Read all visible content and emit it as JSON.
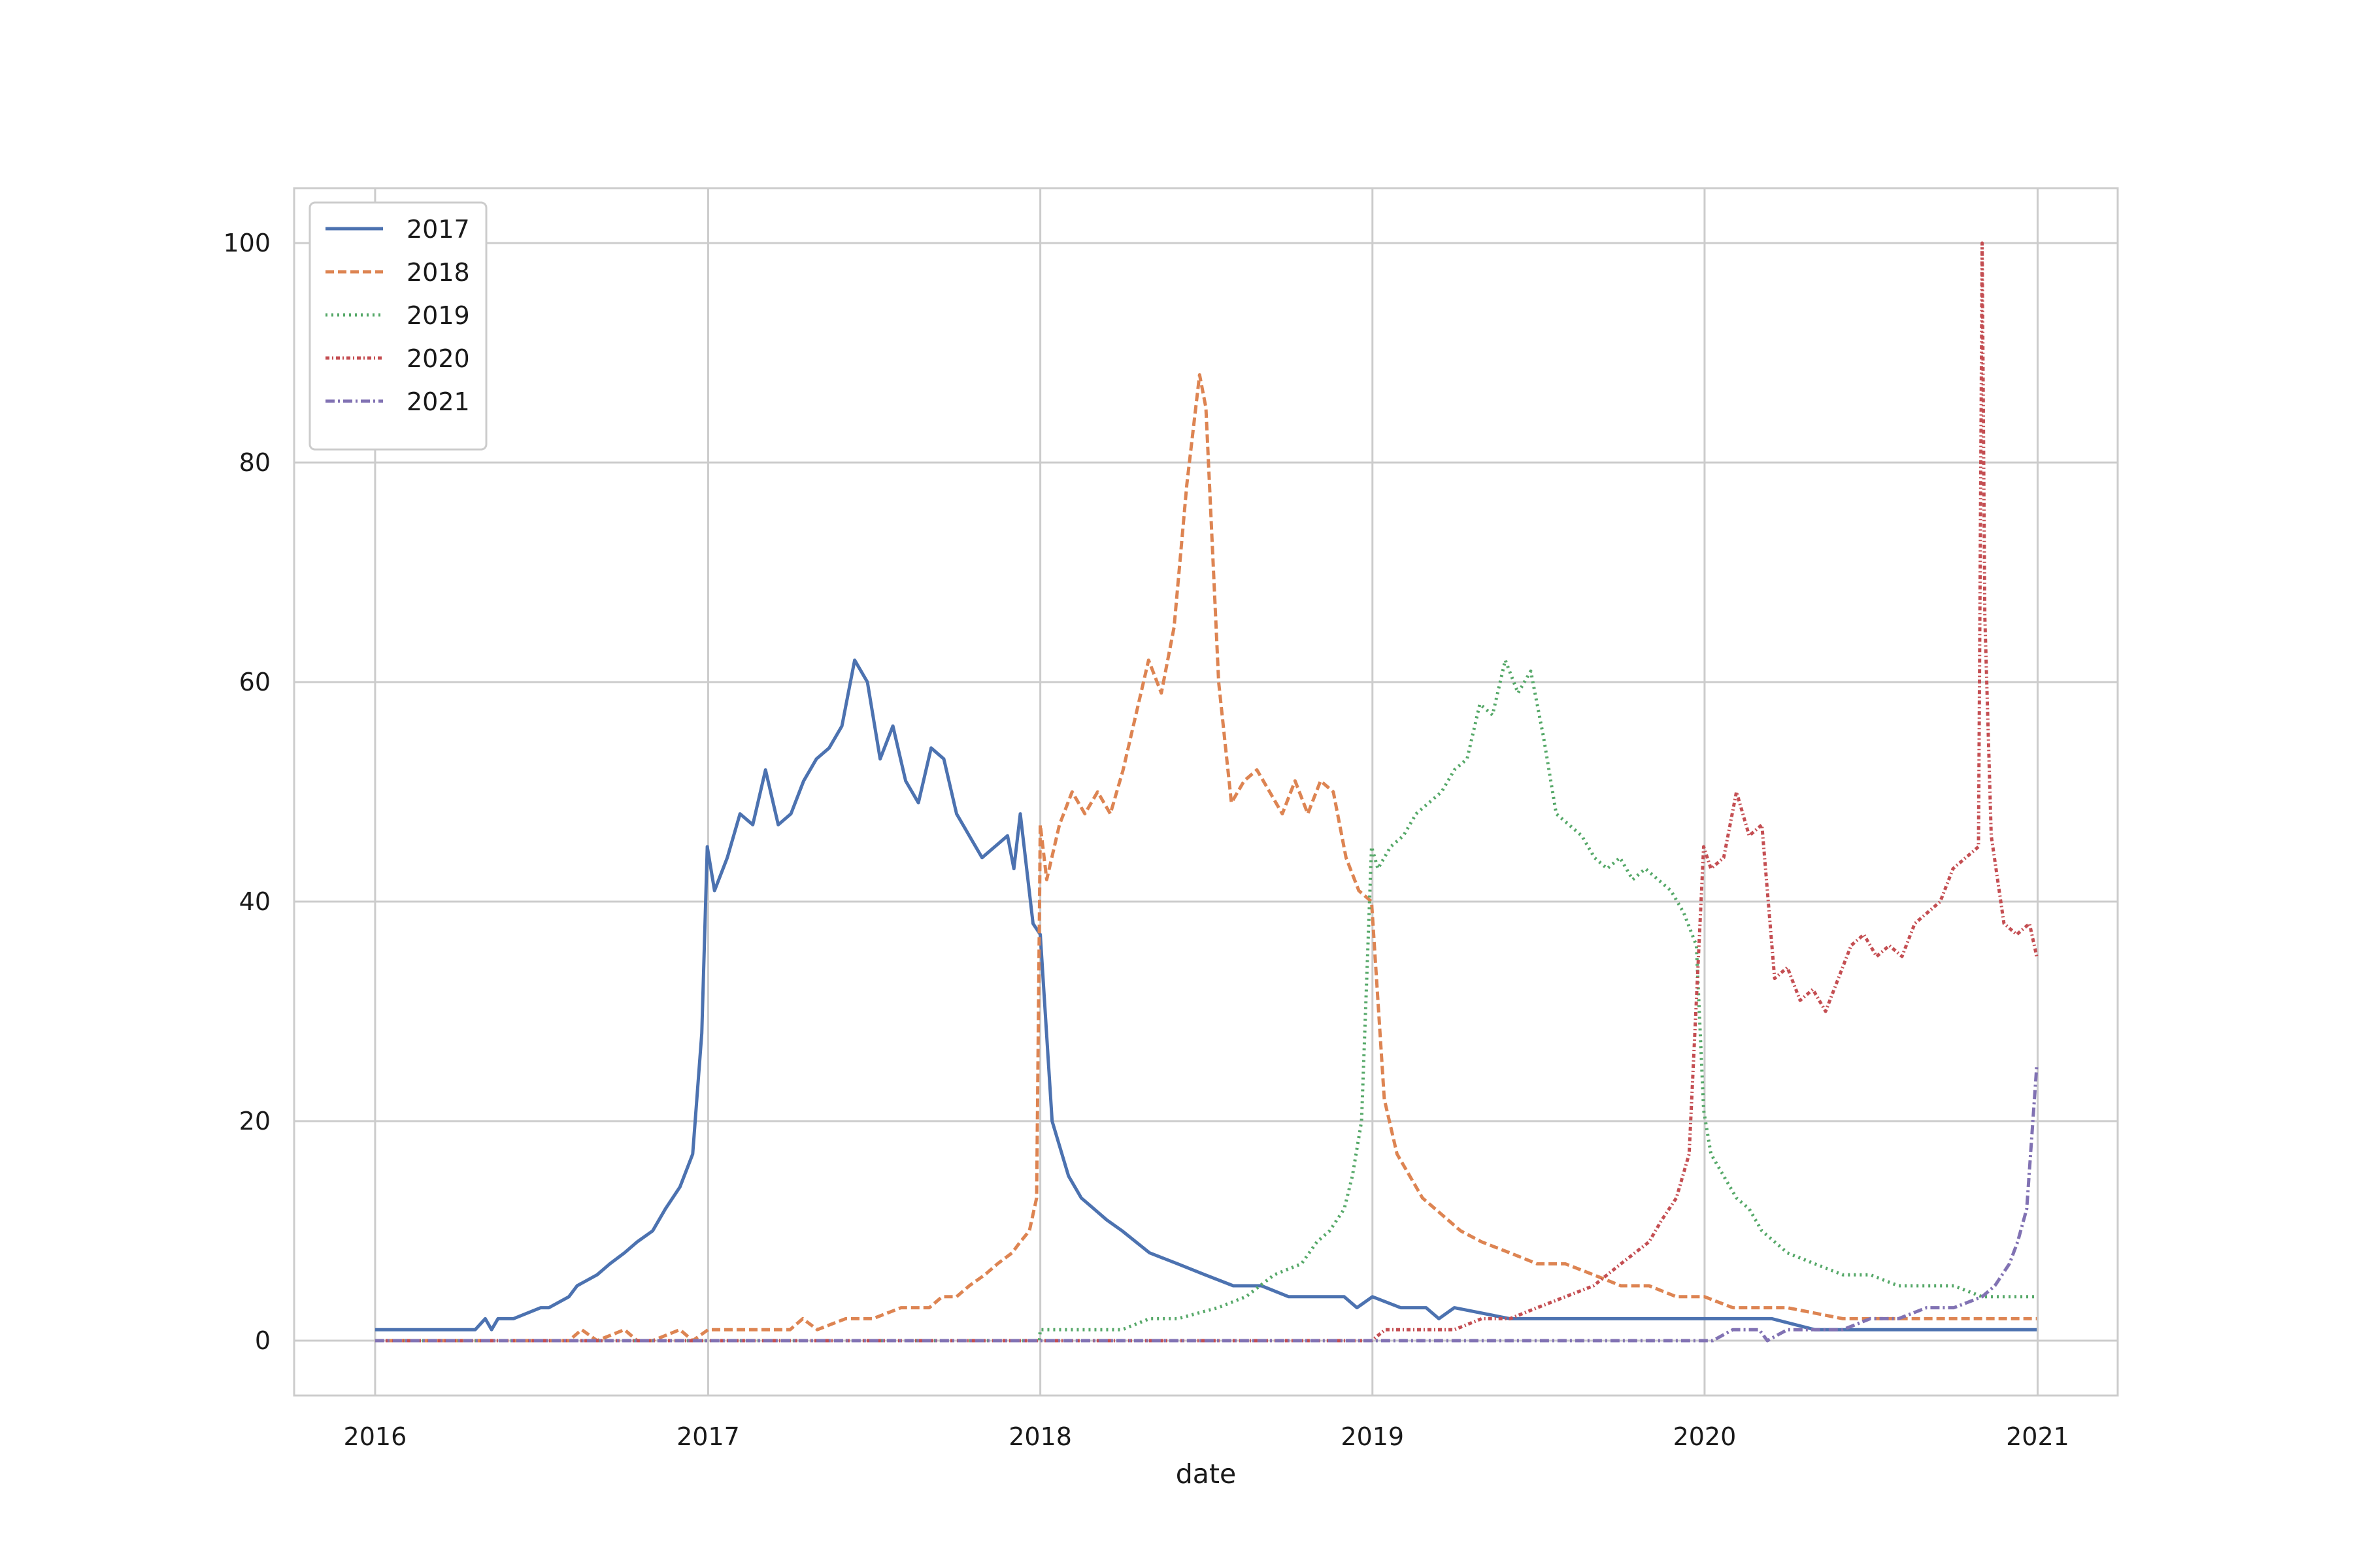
{
  "chart_data": {
    "type": "line",
    "title": "",
    "xlabel": "date",
    "ylabel": "",
    "xlim": [
      "2015-10-04",
      "2021-03-30"
    ],
    "ylim": [
      -5,
      105
    ],
    "xticks": [
      "2016",
      "2017",
      "2018",
      "2019",
      "2020",
      "2021"
    ],
    "yticks": [
      0,
      20,
      40,
      60,
      80,
      100
    ],
    "grid": true,
    "legend_position": "top-left",
    "series": [
      {
        "name": "2017",
        "color": "#4c72b0",
        "dash": "solid",
        "x": [
          "2016-01-01",
          "2016-03-01",
          "2016-04-20",
          "2016-05-01",
          "2016-05-08",
          "2016-05-15",
          "2016-06-01",
          "2016-07-01",
          "2016-07-10",
          "2016-08-01",
          "2016-08-10",
          "2016-09-01",
          "2016-09-15",
          "2016-10-01",
          "2016-10-15",
          "2016-11-01",
          "2016-11-15",
          "2016-12-01",
          "2016-12-15",
          "2016-12-25",
          "2016-12-31",
          "2017-01-08",
          "2017-01-22",
          "2017-02-05",
          "2017-02-19",
          "2017-03-05",
          "2017-03-19",
          "2017-04-02",
          "2017-04-16",
          "2017-04-30",
          "2017-05-14",
          "2017-05-28",
          "2017-06-11",
          "2017-06-25",
          "2017-07-09",
          "2017-07-23",
          "2017-08-06",
          "2017-08-20",
          "2017-09-03",
          "2017-09-17",
          "2017-10-01",
          "2017-10-15",
          "2017-10-29",
          "2017-11-12",
          "2017-11-26",
          "2017-12-03",
          "2017-12-10",
          "2017-12-24",
          "2018-01-01",
          "2018-01-14",
          "2018-02-01",
          "2018-02-15",
          "2018-03-01",
          "2018-03-15",
          "2018-04-01",
          "2018-05-01",
          "2018-06-01",
          "2018-07-01",
          "2018-08-01",
          "2018-09-01",
          "2018-10-01",
          "2018-11-01",
          "2018-12-01",
          "2018-12-15",
          "2019-01-01",
          "2019-02-01",
          "2019-03-01",
          "2019-03-15",
          "2019-04-01",
          "2019-06-01",
          "2019-09-01",
          "2019-12-01",
          "2020-01-01",
          "2020-02-01",
          "2020-03-15",
          "2020-05-01",
          "2020-08-01",
          "2020-11-01",
          "2020-12-31"
        ],
        "y": [
          1,
          1,
          1,
          2,
          1,
          2,
          2,
          3,
          3,
          4,
          5,
          6,
          7,
          8,
          9,
          10,
          12,
          14,
          17,
          28,
          45,
          41,
          44,
          48,
          47,
          52,
          47,
          48,
          51,
          53,
          54,
          56,
          62,
          60,
          53,
          56,
          51,
          49,
          54,
          53,
          48,
          46,
          44,
          45,
          46,
          43,
          48,
          38,
          37,
          20,
          15,
          13,
          12,
          11,
          10,
          8,
          7,
          6,
          5,
          5,
          4,
          4,
          4,
          3,
          4,
          3,
          3,
          2,
          3,
          2,
          2,
          2,
          2,
          2,
          2,
          1,
          1,
          1,
          1
        ]
      },
      {
        "name": "2018",
        "color": "#dd8452",
        "dash": "13,6",
        "x": [
          "2016-01-01",
          "2016-08-01",
          "2016-08-15",
          "2016-09-01",
          "2016-10-01",
          "2016-10-15",
          "2016-11-01",
          "2016-12-01",
          "2016-12-15",
          "2017-01-01",
          "2017-02-01",
          "2017-03-01",
          "2017-04-01",
          "2017-04-15",
          "2017-05-01",
          "2017-06-01",
          "2017-07-01",
          "2017-08-01",
          "2017-09-01",
          "2017-09-15",
          "2017-10-01",
          "2017-10-15",
          "2017-11-01",
          "2017-11-15",
          "2017-12-01",
          "2017-12-10",
          "2017-12-20",
          "2017-12-28",
          "2018-01-01",
          "2018-01-08",
          "2018-01-22",
          "2018-02-05",
          "2018-02-19",
          "2018-03-05",
          "2018-03-19",
          "2018-04-02",
          "2018-04-16",
          "2018-04-30",
          "2018-05-14",
          "2018-05-28",
          "2018-06-11",
          "2018-06-25",
          "2018-07-02",
          "2018-07-16",
          "2018-07-30",
          "2018-08-13",
          "2018-08-27",
          "2018-09-10",
          "2018-09-24",
          "2018-10-08",
          "2018-10-22",
          "2018-11-05",
          "2018-11-19",
          "2018-12-03",
          "2018-12-17",
          "2018-12-31",
          "2019-01-14",
          "2019-01-28",
          "2019-02-11",
          "2019-02-25",
          "2019-03-11",
          "2019-03-25",
          "2019-04-08",
          "2019-05-01",
          "2019-06-01",
          "2019-07-01",
          "2019-08-01",
          "2019-09-01",
          "2019-10-01",
          "2019-11-01",
          "2019-12-01",
          "2020-01-01",
          "2020-02-01",
          "2020-04-01",
          "2020-06-01",
          "2020-09-01",
          "2020-12-31"
        ],
        "y": [
          0,
          0,
          1,
          0,
          1,
          0,
          0,
          1,
          0,
          1,
          1,
          1,
          1,
          2,
          1,
          2,
          2,
          3,
          3,
          4,
          4,
          5,
          6,
          7,
          8,
          9,
          10,
          13,
          47,
          42,
          47,
          50,
          48,
          50,
          48,
          52,
          57,
          62,
          59,
          65,
          78,
          88,
          85,
          60,
          49,
          51,
          52,
          50,
          48,
          51,
          48,
          51,
          50,
          44,
          41,
          40,
          22,
          17,
          15,
          13,
          12,
          11,
          10,
          9,
          8,
          7,
          7,
          6,
          5,
          5,
          4,
          4,
          3,
          3,
          2,
          2,
          2
        ]
      },
      {
        "name": "2019",
        "color": "#55a868",
        "dash": "3,6",
        "x": [
          "2016-01-01",
          "2017-12-31",
          "2018-01-01",
          "2018-02-01",
          "2018-04-01",
          "2018-05-01",
          "2018-06-01",
          "2018-07-15",
          "2018-08-15",
          "2018-09-15",
          "2018-10-15",
          "2018-11-01",
          "2018-11-15",
          "2018-12-01",
          "2018-12-10",
          "2018-12-20",
          "2018-12-31",
          "2019-01-07",
          "2019-01-21",
          "2019-02-04",
          "2019-02-18",
          "2019-03-04",
          "2019-03-18",
          "2019-04-01",
          "2019-04-15",
          "2019-04-29",
          "2019-05-13",
          "2019-05-27",
          "2019-06-10",
          "2019-06-24",
          "2019-07-08",
          "2019-07-22",
          "2019-08-05",
          "2019-08-19",
          "2019-09-02",
          "2019-09-16",
          "2019-09-30",
          "2019-10-14",
          "2019-10-28",
          "2019-11-11",
          "2019-11-25",
          "2019-12-09",
          "2019-12-23",
          "2019-12-31",
          "2020-01-08",
          "2020-01-22",
          "2020-02-05",
          "2020-02-19",
          "2020-03-04",
          "2020-03-18",
          "2020-04-01",
          "2020-05-01",
          "2020-06-01",
          "2020-07-01",
          "2020-08-01",
          "2020-09-01",
          "2020-10-01",
          "2020-11-01",
          "2020-12-31"
        ],
        "y": [
          0,
          0,
          1,
          1,
          1,
          2,
          2,
          3,
          4,
          6,
          7,
          9,
          10,
          12,
          15,
          20,
          45,
          43,
          45,
          46,
          48,
          49,
          50,
          52,
          53,
          58,
          57,
          62,
          59,
          61,
          55,
          48,
          47,
          46,
          44,
          43,
          44,
          42,
          43,
          42,
          41,
          39,
          36,
          21,
          17,
          15,
          13,
          12,
          10,
          9,
          8,
          7,
          6,
          6,
          5,
          5,
          5,
          4,
          4
        ]
      },
      {
        "name": "2020",
        "color": "#c44e52",
        "dash": "6,4,2,4",
        "x": [
          "2016-01-01",
          "2018-12-31",
          "2019-01-15",
          "2019-02-01",
          "2019-03-01",
          "2019-04-01",
          "2019-05-01",
          "2019-06-01",
          "2019-07-01",
          "2019-08-01",
          "2019-09-01",
          "2019-10-01",
          "2019-11-01",
          "2019-11-15",
          "2019-12-01",
          "2019-12-15",
          "2019-12-31",
          "2020-01-08",
          "2020-01-22",
          "2020-02-05",
          "2020-02-19",
          "2020-03-04",
          "2020-03-18",
          "2020-04-01",
          "2020-04-15",
          "2020-04-29",
          "2020-05-13",
          "2020-05-27",
          "2020-06-10",
          "2020-06-24",
          "2020-07-08",
          "2020-07-22",
          "2020-08-05",
          "2020-08-19",
          "2020-09-02",
          "2020-09-16",
          "2020-09-30",
          "2020-10-14",
          "2020-10-28",
          "2020-11-01",
          "2020-11-04",
          "2020-11-11",
          "2020-11-25",
          "2020-12-09",
          "2020-12-23",
          "2020-12-31"
        ],
        "y": [
          0,
          0,
          1,
          1,
          1,
          1,
          2,
          2,
          3,
          4,
          5,
          7,
          9,
          11,
          13,
          17,
          45,
          43,
          44,
          50,
          46,
          47,
          33,
          34,
          31,
          32,
          30,
          33,
          36,
          37,
          35,
          36,
          35,
          38,
          39,
          40,
          43,
          44,
          45,
          100,
          66,
          46,
          38,
          37,
          38,
          35
        ]
      },
      {
        "name": "2021",
        "color": "#8172b3",
        "dash": "14,5,3,5",
        "x": [
          "2016-01-01",
          "2019-12-31",
          "2020-01-10",
          "2020-02-01",
          "2020-03-01",
          "2020-03-10",
          "2020-04-01",
          "2020-06-01",
          "2020-07-01",
          "2020-08-01",
          "2020-09-01",
          "2020-10-01",
          "2020-11-01",
          "2020-11-15",
          "2020-12-01",
          "2020-12-10",
          "2020-12-20",
          "2020-12-31"
        ],
        "y": [
          0,
          0,
          0,
          1,
          1,
          0,
          1,
          1,
          2,
          2,
          3,
          3,
          4,
          5,
          7,
          9,
          12,
          25
        ]
      }
    ]
  }
}
